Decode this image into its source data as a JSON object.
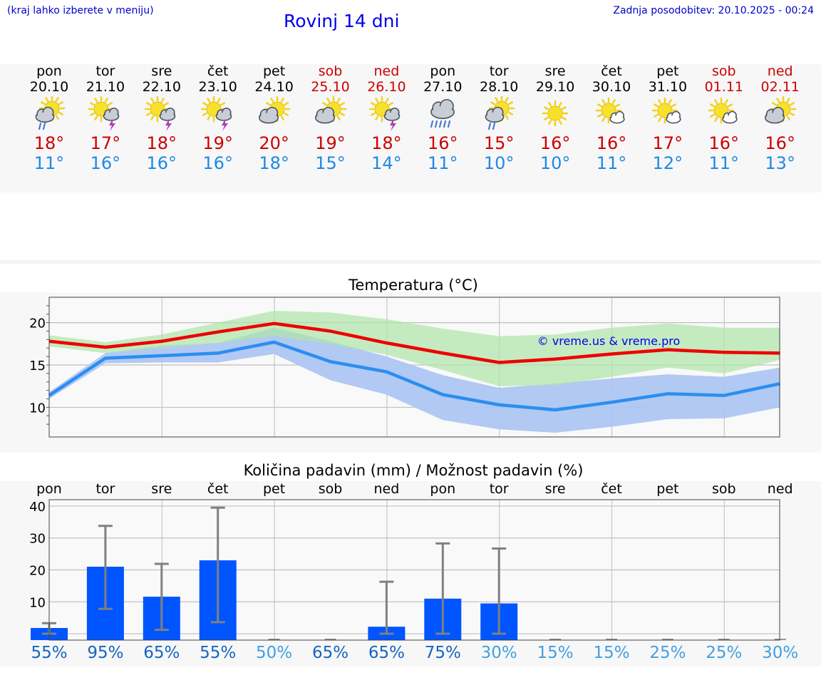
{
  "header": {
    "left_note": "(kraj lahko izberete v meniju)",
    "title": "Rovinj 14 dni",
    "updated": "Zadnja posodobitev: 20.10.2025 - 00:24"
  },
  "days": [
    {
      "name": "pon",
      "date": "20.10",
      "weekend": false,
      "icon": "sun-cloud-rain-icon",
      "max": "18°",
      "min": "11°"
    },
    {
      "name": "tor",
      "date": "21.10",
      "weekend": false,
      "icon": "sun-cloud-thunder-icon",
      "max": "17°",
      "min": "16°"
    },
    {
      "name": "sre",
      "date": "22.10",
      "weekend": false,
      "icon": "sun-cloud-thunder-icon",
      "max": "18°",
      "min": "16°"
    },
    {
      "name": "čet",
      "date": "23.10",
      "weekend": false,
      "icon": "sun-cloud-thunder-icon",
      "max": "19°",
      "min": "16°"
    },
    {
      "name": "pet",
      "date": "24.10",
      "weekend": false,
      "icon": "sun-cloud-icon",
      "max": "20°",
      "min": "18°"
    },
    {
      "name": "sob",
      "date": "25.10",
      "weekend": true,
      "icon": "sun-cloud-icon",
      "max": "19°",
      "min": "15°"
    },
    {
      "name": "ned",
      "date": "26.10",
      "weekend": true,
      "icon": "sun-cloud-thunder-icon",
      "max": "18°",
      "min": "14°"
    },
    {
      "name": "pon",
      "date": "27.10",
      "weekend": false,
      "icon": "heavy-rain-cloud-icon",
      "max": "16°",
      "min": "11°"
    },
    {
      "name": "tor",
      "date": "28.10",
      "weekend": false,
      "icon": "sun-cloud-rain-icon",
      "max": "15°",
      "min": "10°"
    },
    {
      "name": "sre",
      "date": "29.10",
      "weekend": false,
      "icon": "sun-icon",
      "max": "16°",
      "min": "10°"
    },
    {
      "name": "čet",
      "date": "30.10",
      "weekend": false,
      "icon": "sun-small-cloud-icon",
      "max": "16°",
      "min": "11°"
    },
    {
      "name": "pet",
      "date": "31.10",
      "weekend": false,
      "icon": "sun-small-cloud-icon",
      "max": "17°",
      "min": "12°"
    },
    {
      "name": "sob",
      "date": "01.11",
      "weekend": true,
      "icon": "sun-small-cloud-icon",
      "max": "16°",
      "min": "11°"
    },
    {
      "name": "ned",
      "date": "02.11",
      "weekend": true,
      "icon": "sun-cloud-icon",
      "max": "16°",
      "min": "13°"
    }
  ],
  "colors": {
    "max_line": "#ee0000",
    "min_line": "#2b8ef0",
    "max_band": "#aee6a6",
    "min_band": "#adc6f2",
    "overlap_band": "#7fc4a4",
    "bar": "#0055ff",
    "error_bar": "#808080",
    "pct_dark": "#1565c0",
    "pct_light": "#42a0e0"
  },
  "chart_data": [
    {
      "type": "line",
      "title": "Temperatura (°C)",
      "watermark": "© vreme.us & vreme.pro",
      "ylim": [
        6.5,
        23
      ],
      "yticks": [
        10,
        15,
        20
      ],
      "grid": true,
      "series": [
        {
          "key": "max",
          "values": [
            17.8,
            17.1,
            17.8,
            18.9,
            19.9,
            19.0,
            17.6,
            16.4,
            15.3,
            15.7,
            16.3,
            16.8,
            16.5,
            16.4
          ],
          "band_low": [
            17.2,
            16.4,
            17.0,
            17.6,
            18.4,
            17.5,
            16.2,
            14.4,
            12.5,
            12.6,
            13.6,
            14.7,
            14.0,
            15.6
          ],
          "band_high": [
            18.5,
            17.7,
            18.6,
            20.0,
            21.4,
            21.2,
            20.4,
            19.3,
            18.4,
            18.6,
            19.4,
            19.9,
            19.4,
            19.4
          ]
        },
        {
          "key": "min",
          "values": [
            11.4,
            15.8,
            16.1,
            16.4,
            17.7,
            15.4,
            14.2,
            11.5,
            10.3,
            9.7,
            10.6,
            11.6,
            11.4,
            12.8
          ],
          "band_low": [
            11.0,
            15.2,
            15.3,
            15.3,
            16.3,
            13.2,
            11.5,
            8.5,
            7.4,
            7.0,
            7.7,
            8.6,
            8.7,
            10.0
          ],
          "band_high": [
            11.8,
            16.4,
            17.3,
            17.6,
            19.4,
            17.8,
            16.0,
            13.8,
            12.3,
            12.8,
            13.4,
            13.9,
            13.6,
            14.7
          ]
        }
      ]
    },
    {
      "type": "bar",
      "title": "Količina padavin (mm) / Možnost padavin (%)",
      "ylim": [
        -2,
        42
      ],
      "yticks": [
        0,
        10,
        20,
        30,
        40
      ],
      "grid": true,
      "categories": [
        "pon",
        "tor",
        "sre",
        "čet",
        "pet",
        "sob",
        "ned",
        "pon",
        "tor",
        "sre",
        "čet",
        "pet",
        "sob",
        "ned"
      ],
      "values": [
        1.8,
        21.0,
        11.6,
        23.0,
        0,
        0,
        2.2,
        11.0,
        9.5,
        0,
        0,
        0,
        0,
        0
      ],
      "error_low": [
        0,
        7.8,
        1.2,
        3.6,
        0,
        0,
        0,
        0,
        0,
        0,
        0,
        0,
        0,
        0
      ],
      "error_high": [
        3.3,
        33.8,
        21.9,
        39.5,
        0,
        0,
        16.3,
        28.3,
        26.7,
        0,
        0,
        0,
        0,
        0
      ],
      "probability": [
        "55%",
        "95%",
        "65%",
        "55%",
        "50%",
        "65%",
        "65%",
        "75%",
        "30%",
        "15%",
        "15%",
        "25%",
        "25%",
        "30%"
      ],
      "probability_dark": [
        true,
        true,
        true,
        true,
        false,
        true,
        true,
        true,
        false,
        false,
        false,
        false,
        false,
        false
      ]
    }
  ]
}
